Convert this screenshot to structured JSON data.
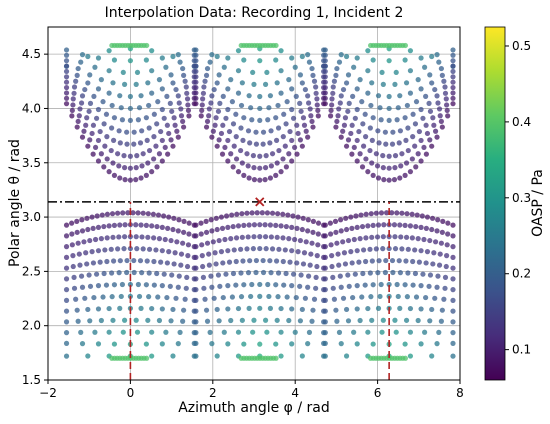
{
  "figure": {
    "title": "Interpolation Data: Recording 1, Incident 2",
    "xlabel": "Azimuth angle φ / rad",
    "ylabel": "Polar angle θ / rad",
    "colorbar_label": "OASP / Pa"
  },
  "chart_data": {
    "type": "scatter",
    "title": "Interpolation Data: Recording 1, Incident 2",
    "xlabel": "Azimuth angle φ / rad",
    "ylabel": "Polar angle θ / rad",
    "xlim": [
      -2,
      8
    ],
    "ylim": [
      1.5,
      4.75
    ],
    "xticks": [
      -2,
      0,
      2,
      4,
      6,
      8
    ],
    "yticks": [
      1.5,
      2.0,
      2.5,
      3.0,
      3.5,
      4.0,
      4.5
    ],
    "grid": true,
    "colormap": "viridis",
    "colorbar": {
      "label": "OASP / Pa",
      "range": [
        0.06,
        0.525
      ],
      "ticks": [
        0.1,
        0.2,
        0.3,
        0.4,
        0.5
      ]
    },
    "series": [
      {
        "description_kind": "scatter-pattern",
        "pattern": "arcs of points fanning out from poles",
        "poles": [
          {
            "x": 0.0,
            "y": 1.7
          },
          {
            "x": 3.14,
            "y": 1.7
          },
          {
            "x": 6.28,
            "y": 1.7
          },
          {
            "x": 0.0,
            "y": 4.58
          },
          {
            "x": 3.14,
            "y": 4.58
          },
          {
            "x": 6.28,
            "y": 4.58
          }
        ],
        "x_range": [
          -1.6,
          7.9
        ],
        "lower_y_range": [
          1.7,
          3.05
        ],
        "upper_y_range": [
          3.25,
          4.65
        ],
        "value_range": [
          0.06,
          0.525
        ],
        "high_value_near_poles": true
      }
    ],
    "reference_lines": [
      {
        "style": "dash-dot",
        "color": "#000000",
        "orientation": "horizontal",
        "y": 3.14
      },
      {
        "style": "dashed",
        "color": "#b22222",
        "orientation": "vertical",
        "x": 0.0,
        "y_range": [
          1.5,
          3.14
        ]
      },
      {
        "style": "dashed",
        "color": "#b22222",
        "orientation": "vertical",
        "x": 6.28,
        "y_range": [
          1.5,
          3.14
        ]
      }
    ],
    "markers": [
      {
        "type": "x",
        "color": "#b22222",
        "x": 3.14,
        "y": 3.14
      }
    ]
  }
}
